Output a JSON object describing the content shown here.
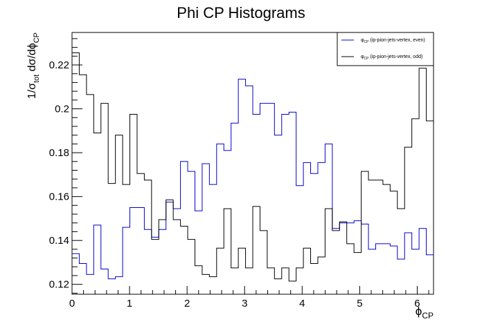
{
  "chart_data": {
    "type": "line",
    "title": "Phi CP Histograms",
    "xlabel": {
      "main": "ϕ",
      "sub": "CP"
    },
    "ylabel": {
      "p1": "1/σ",
      "s1": "tot",
      "p2": " dσ/dϕ",
      "s2": "CP"
    },
    "xlim": [
      0,
      6.2832
    ],
    "ylim": [
      0.1155,
      0.2348
    ],
    "x_ticks": [
      0,
      1,
      2,
      3,
      4,
      5,
      6
    ],
    "y_ticks": [
      0.12,
      0.14,
      0.16,
      0.18,
      0.2,
      0.22
    ],
    "x_tick_labels": [
      "0",
      "1",
      "2",
      "3",
      "4",
      "5",
      "6"
    ],
    "y_tick_labels": [
      "0.12",
      "0.14",
      "0.16",
      "0.18",
      "0.2",
      "0.22"
    ],
    "grid": false,
    "legend_position": "top-right",
    "bins": 50,
    "series": [
      {
        "legend_prefix": "φ",
        "legend_sub": "CP",
        "legend_suffix": " (ip-pion-jets-vertex, even)",
        "color": "#0000cc",
        "values": [
          0.134,
          0.1295,
          0.1245,
          0.147,
          0.127,
          0.1225,
          0.1235,
          0.146,
          0.155,
          0.155,
          0.145,
          0.1415,
          0.145,
          0.1575,
          0.1545,
          0.176,
          0.1715,
          0.1535,
          0.175,
          0.1655,
          0.184,
          0.181,
          0.1935,
          0.2135,
          0.2105,
          0.1975,
          0.2025,
          0.2025,
          0.188,
          0.1975,
          0.1985,
          0.165,
          0.1755,
          0.1705,
          0.1755,
          0.184,
          0.1455,
          0.148,
          0.148,
          0.149,
          0.1475,
          0.136,
          0.1385,
          0.1385,
          0.1375,
          0.1315,
          0.1435,
          0.136,
          0.1455,
          0.1335
        ]
      },
      {
        "legend_prefix": "φ",
        "legend_sub": "CP",
        "legend_suffix": " (ip-pion-jets-vertex, odd)",
        "color": "#000000",
        "values": [
          0.2255,
          0.2155,
          0.2065,
          0.189,
          0.2025,
          0.166,
          0.188,
          0.1655,
          0.1975,
          0.1705,
          0.1675,
          0.1405,
          0.1495,
          0.1585,
          0.1495,
          0.1465,
          0.1405,
          0.1285,
          0.1245,
          0.1235,
          0.1365,
          0.1545,
          0.1275,
          0.1365,
          0.1275,
          0.1555,
          0.1445,
          0.1275,
          0.1225,
          0.1275,
          0.1215,
          0.1275,
          0.1365,
          0.1295,
          0.1325,
          0.1545,
          0.1445,
          0.1485,
          0.1385,
          0.1345,
          0.1715,
          0.1675,
          0.1675,
          0.1655,
          0.1625,
          0.1545,
          0.1825,
          0.1955,
          0.2185,
          0.1945
        ]
      }
    ]
  }
}
